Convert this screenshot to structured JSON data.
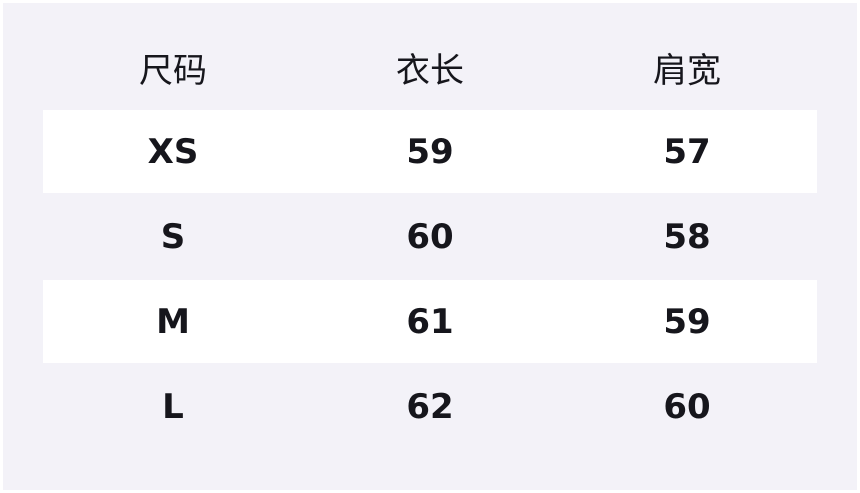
{
  "table": {
    "headers": [
      "尺码",
      "衣长",
      "肩宽"
    ],
    "rows": [
      [
        "XS",
        "59",
        "57"
      ],
      [
        "S",
        "60",
        "58"
      ],
      [
        "M",
        "61",
        "59"
      ],
      [
        "L",
        "62",
        "60"
      ]
    ]
  },
  "colors": {
    "background": "#f3f2f8",
    "stripe": "#ffffff",
    "text": "#16161c"
  }
}
